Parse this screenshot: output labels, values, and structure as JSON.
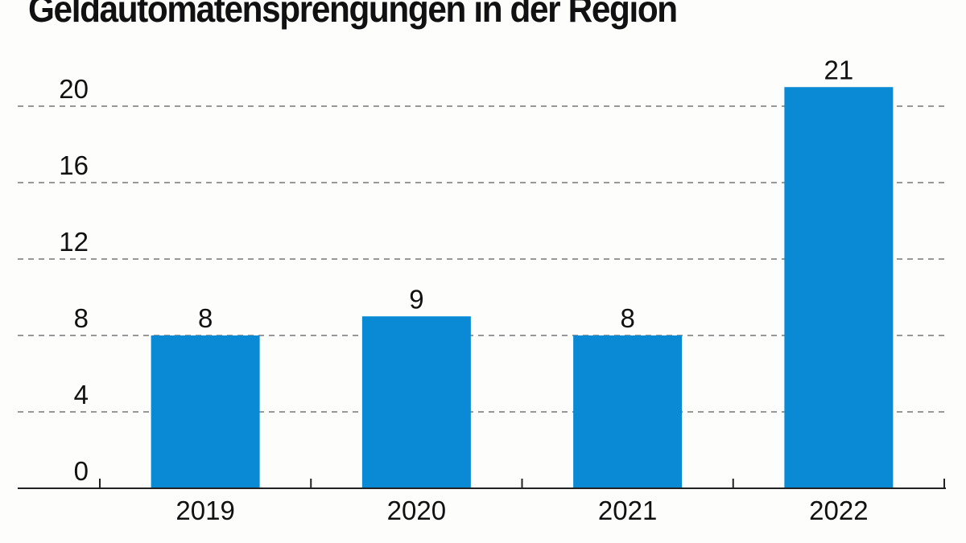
{
  "chart_data": {
    "type": "bar",
    "title": "Geldautomatensprengungen in der Region",
    "categories": [
      "2019",
      "2020",
      "2021",
      "2022"
    ],
    "values": [
      8,
      9,
      8,
      21
    ],
    "data_labels": [
      "8",
      "9",
      "8",
      "21"
    ],
    "xlabel": "",
    "ylabel": "",
    "ylim": [
      0,
      20
    ],
    "yticks": [
      "0",
      "4",
      "8",
      "12",
      "16",
      "20"
    ],
    "grid": true,
    "grid_style": "dashed",
    "bar_color": "#0a8ad4"
  }
}
